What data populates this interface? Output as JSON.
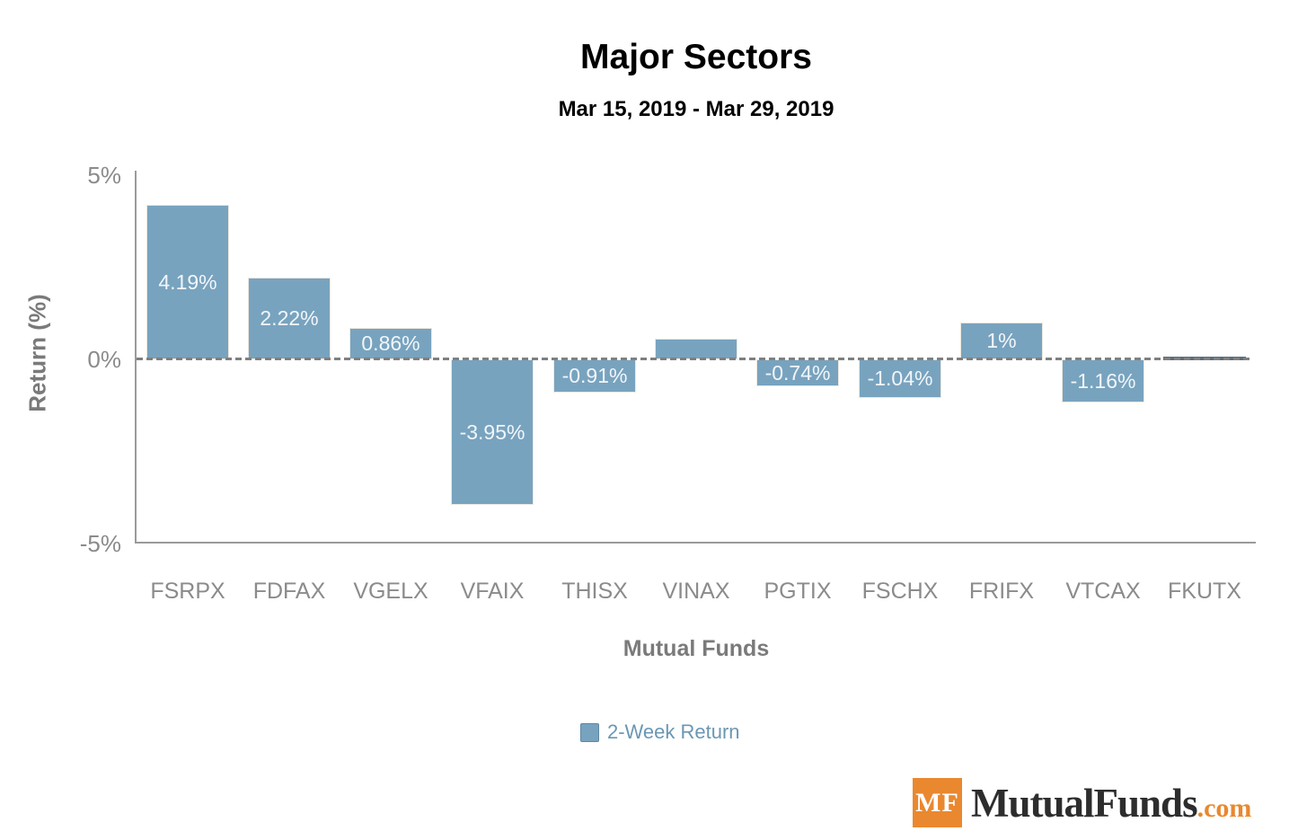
{
  "chart_data": {
    "type": "bar",
    "title": "Major Sectors",
    "subtitle": "Mar 15, 2019 - Mar 29, 2019",
    "xlabel": "Mutual Funds",
    "ylabel": "Return (%)",
    "ylim": [
      -5,
      5
    ],
    "grid": false,
    "zero_line": "dashed",
    "yticks": [
      {
        "value": 5,
        "label": "5%"
      },
      {
        "value": 0,
        "label": "0%"
      },
      {
        "value": -5,
        "label": "-5%"
      }
    ],
    "categories": [
      "FSRPX",
      "FDFAX",
      "VGELX",
      "VFAIX",
      "THISX",
      "VINAX",
      "PGTIX",
      "FSCHX",
      "FRIFX",
      "VTCAX",
      "FKUTX"
    ],
    "series": [
      {
        "name": "2-Week Return",
        "values": [
          4.19,
          2.22,
          0.86,
          -3.95,
          -0.91,
          0.55,
          -0.74,
          -1.04,
          1,
          -1.16,
          0.05
        ],
        "data_labels": [
          "4.19%",
          "2.22%",
          "0.86%",
          "-3.95%",
          "-0.91%",
          "",
          "-0.74%",
          "-1.04%",
          "1%",
          "-1.16%",
          ""
        ]
      }
    ],
    "legend": {
      "position": "bottom",
      "entries": [
        "2-Week Return"
      ]
    }
  },
  "legend": {
    "label": "2-Week Return"
  },
  "branding": {
    "logo_initials": "MF",
    "logo_text": "MutualFunds",
    "logo_suffix": ".com"
  },
  "colors": {
    "bar": "#78a3bf",
    "bar_border": "#ece8df",
    "tiny_bar": "#5c6e7a",
    "bar_label": "#f1f6f9",
    "axis": "#9a9a9a",
    "zero_dash": "#7f7f7f",
    "tick_text": "#8b8b8b",
    "axis_title_text": "#7a7a7a",
    "legend_text": "#6b97b3",
    "logo_orange": "#e9882f",
    "logo_dark": "#2d2d2d"
  }
}
